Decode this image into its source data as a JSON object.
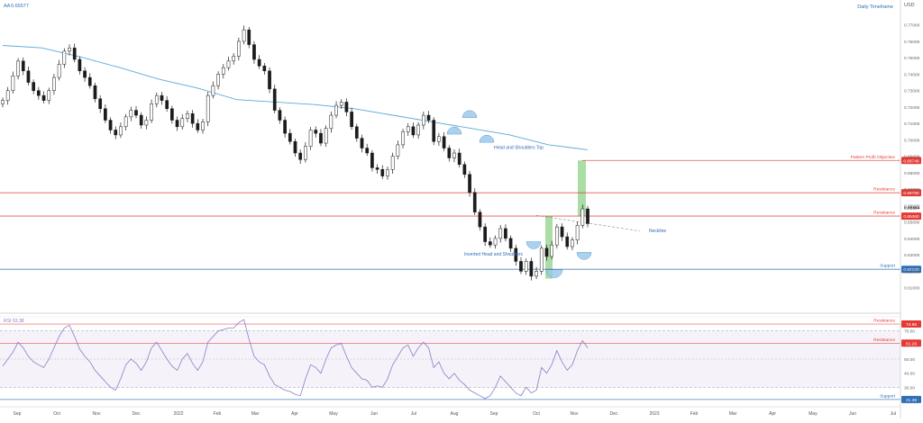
{
  "chart_data": {
    "type": "candlestick",
    "instrument_label": "AA",
    "last_price_label": "0.65577",
    "timeframe": "Daily Timeframe",
    "currency": "USD",
    "price_axis": {
      "range": [
        0.595,
        0.7775
      ],
      "ticks": [
        0.77,
        0.76,
        0.75,
        0.74,
        0.73,
        0.72,
        0.71,
        0.7,
        0.69,
        0.68,
        0.67,
        0.66,
        0.65,
        0.64,
        0.63,
        0.62,
        0.61
      ],
      "tick_labels": [
        "0.77000",
        "0.76000",
        "0.75000",
        "0.74000",
        "0.73000",
        "0.72000",
        "0.71000",
        "0.70000",
        "0.69000",
        "0.68000",
        "0.67000",
        "0.66000",
        "0.65000",
        "0.64000",
        "0.63000",
        "0.62000",
        "0.61000"
      ]
    },
    "time_axis": {
      "labels": [
        "Sep",
        "Oct",
        "Nov",
        "Dec",
        "2022",
        "Feb",
        "Mar",
        "Apr",
        "May",
        "Jun",
        "Jul",
        "Aug",
        "Sep",
        "Oct",
        "Nov",
        "Dec",
        "2023",
        "Feb",
        "Mar",
        "Apr",
        "May",
        "Jun",
        "Jul"
      ]
    },
    "levels": [
      {
        "name": "Pattern Profit Objective",
        "price": 0.68748,
        "label": "0.68748",
        "color": "#e53935"
      },
      {
        "name": "Resistance",
        "price": 0.6678,
        "label": "0.66780",
        "color": "#e53935"
      },
      {
        "name": "Resistance",
        "price": 0.6536,
        "label": "0.65360",
        "color": "#e53935"
      },
      {
        "name": "Support",
        "price": 0.6212,
        "label": "0.62120",
        "color": "#2f6db5"
      }
    ],
    "current_price_label": "0.65884",
    "annotations": [
      "Head and Shoulders Top",
      "Neckline",
      "Inverted Head and Shoulders"
    ],
    "close_series": [
      0.724,
      0.73,
      0.739,
      0.748,
      0.742,
      0.735,
      0.73,
      0.727,
      0.724,
      0.73,
      0.738,
      0.746,
      0.754,
      0.756,
      0.749,
      0.742,
      0.738,
      0.733,
      0.725,
      0.719,
      0.712,
      0.706,
      0.703,
      0.708,
      0.714,
      0.718,
      0.715,
      0.709,
      0.712,
      0.722,
      0.727,
      0.724,
      0.719,
      0.712,
      0.708,
      0.713,
      0.716,
      0.71,
      0.706,
      0.711,
      0.727,
      0.733,
      0.74,
      0.744,
      0.748,
      0.751,
      0.76,
      0.767,
      0.758,
      0.749,
      0.745,
      0.742,
      0.731,
      0.718,
      0.712,
      0.704,
      0.699,
      0.692,
      0.688,
      0.696,
      0.706,
      0.704,
      0.698,
      0.707,
      0.715,
      0.721,
      0.723,
      0.717,
      0.708,
      0.701,
      0.695,
      0.692,
      0.683,
      0.682,
      0.678,
      0.682,
      0.69,
      0.697,
      0.705,
      0.708,
      0.703,
      0.709,
      0.715,
      0.712,
      0.699,
      0.702,
      0.695,
      0.689,
      0.692,
      0.685,
      0.679,
      0.668,
      0.656,
      0.647,
      0.638,
      0.636,
      0.64,
      0.646,
      0.64,
      0.634,
      0.626,
      0.62,
      0.626,
      0.617,
      0.62,
      0.634,
      0.629,
      0.636,
      0.647,
      0.641,
      0.635,
      0.639,
      0.648,
      0.658,
      0.649
    ],
    "moving_average": {
      "name": "200-day MA",
      "color": "#5aa9d6",
      "points_x": [
        0,
        10,
        20,
        30,
        40,
        50,
        60,
        70,
        80,
        90,
        100,
        110,
        120,
        130,
        140,
        150
      ],
      "points_y": [
        0.7575,
        0.756,
        0.7505,
        0.744,
        0.737,
        0.7315,
        0.7245,
        0.723,
        0.7215,
        0.719,
        0.715,
        0.711,
        0.707,
        0.703,
        0.697,
        0.694
      ]
    },
    "rsi": {
      "label": "RSI",
      "value_label": "63.38",
      "range": [
        20,
        80
      ],
      "ticks": [
        70,
        50,
        40,
        30
      ],
      "tick_labels": [
        "70.00",
        "50.00",
        "40.00",
        "30.00"
      ],
      "levels": [
        {
          "name": "Resistance",
          "value": 74.86,
          "label": "74.86",
          "color": "#e53935"
        },
        {
          "name": "Resistance",
          "value": 61.29,
          "label": "61.29",
          "color": "#e53935"
        },
        {
          "name": "Support",
          "value": 21.38,
          "label": "21.38",
          "color": "#2f6db5"
        }
      ],
      "values": [
        45,
        50,
        55,
        62,
        58,
        52,
        48,
        46,
        44,
        50,
        58,
        66,
        72,
        74,
        66,
        57,
        52,
        48,
        42,
        38,
        34,
        30,
        28,
        36,
        46,
        50,
        47,
        42,
        48,
        58,
        62,
        56,
        50,
        45,
        42,
        50,
        54,
        47,
        42,
        48,
        62,
        66,
        70,
        71,
        72,
        72,
        76,
        78,
        64,
        52,
        48,
        46,
        38,
        32,
        30,
        28,
        27,
        25,
        24,
        36,
        46,
        44,
        40,
        50,
        58,
        60,
        61,
        52,
        44,
        40,
        36,
        35,
        30,
        31,
        30,
        36,
        46,
        52,
        58,
        60,
        52,
        58,
        62,
        58,
        44,
        48,
        40,
        36,
        40,
        35,
        32,
        28,
        26,
        24,
        22,
        24,
        30,
        38,
        34,
        30,
        26,
        24,
        30,
        26,
        28,
        44,
        40,
        46,
        56,
        48,
        42,
        46,
        56,
        63,
        58
      ]
    }
  }
}
